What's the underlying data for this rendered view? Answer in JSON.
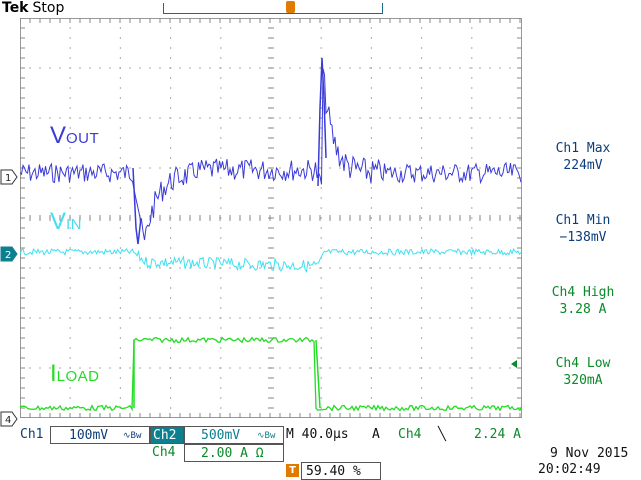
{
  "header": {
    "brand": "Tek",
    "status": "Stop"
  },
  "traces": {
    "vout": {
      "label_main": "V",
      "label_sub": "OUT",
      "marker": "1",
      "color": "#3a3ad8"
    },
    "vin": {
      "label_main": "V",
      "label_sub": "IN",
      "marker": "2",
      "color": "#40e0f0"
    },
    "iload": {
      "label_main": "I",
      "label_sub": "LOAD",
      "marker": "4",
      "color": "#22dd22"
    }
  },
  "trigger_marker": "T",
  "measurements": [
    {
      "name": "Ch1 Max",
      "value": "224mV",
      "color": "#0b3d7a"
    },
    {
      "name": "Ch1 Min",
      "value": "−138mV",
      "color": "#0b3d7a"
    },
    {
      "name": "Ch4 High",
      "value": "3.28 A",
      "color": "#0a8a2a"
    },
    {
      "name": "Ch4 Low",
      "value": "320mA",
      "color": "#0a8a2a"
    }
  ],
  "status": {
    "ch1_label": "Ch1",
    "ch1_scale": "100mV",
    "ch1_bw": "∿Bw",
    "ch2_label": "Ch2",
    "ch2_scale": "500mV",
    "ch2_bw": "∿Bw",
    "timebase": "M 40.0µs",
    "trigger_mode": "A",
    "trigger_source": "Ch4",
    "trigger_slope": "╲",
    "trigger_level": "2.24 A",
    "ch4_label": "Ch4",
    "ch4_scale": "2.00 A Ω",
    "trigger_position": "59.40 %",
    "date": "9 Nov 2015",
    "time": "20:02:49"
  }
}
